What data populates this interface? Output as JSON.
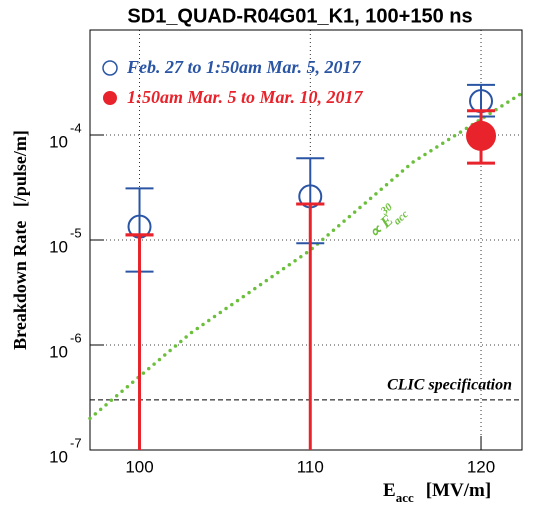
{
  "chart_data": {
    "type": "scatter",
    "title": "SD1_QUAD-R04G01_K1, 100+150 ns",
    "y_label": "Breakdown Rate   [/pulse/m]",
    "x_label": {
      "main": "E",
      "sub": "acc",
      "unit": "[MV/m]"
    },
    "log_y": true,
    "grid": true,
    "legend": "upper left",
    "xlim": [
      97.1,
      122.4
    ],
    "ylim": [
      1e-07,
      0.001
    ],
    "xticks": [
      100,
      110,
      120
    ],
    "yticks": [
      {
        "value": 1e-07,
        "label": "10",
        "exponent": "-7"
      },
      {
        "value": 1e-06,
        "label": "10",
        "exponent": "-6"
      },
      {
        "value": 1e-05,
        "label": "10",
        "exponent": "-5"
      },
      {
        "value": 0.0001,
        "label": "10",
        "exponent": "-4"
      }
    ],
    "series": [
      {
        "name": "Feb. 27 to 1:50am Mar. 5, 2017",
        "color": "#2a55a5",
        "marker": "open",
        "x": [
          100,
          110,
          120
        ],
        "values": [
          1.34e-05,
          2.6e-05,
          0.00021
        ],
        "upper": [
          3.1e-05,
          6e-05,
          0.0003
        ],
        "lower": [
          5e-06,
          9.3e-06,
          0.00015
        ]
      },
      {
        "name": "1:50am Mar. 5 to Mar. 10, 2017",
        "color": "#e8232b",
        "marker": "filled",
        "x": [
          100,
          110,
          120
        ],
        "values": [
          1.12e-05,
          2.2e-05,
          9.8e-05
        ],
        "upper": [
          1.12e-05,
          2.2e-05,
          0.00017
        ],
        "lower": [
          0,
          0,
          5.4e-05
        ]
      }
    ],
    "fit": {
      "color": "#6cbf3c",
      "label": {
        "main": "∝ E",
        "sub": "acc",
        "sup": "30"
      },
      "x": [
        97.1,
        103,
        110,
        116,
        122.4
      ],
      "values": [
        2e-07,
        1.3e-06,
        8e-06,
        5.5e-05,
        0.00025
      ]
    },
    "reference": {
      "label": "CLIC specification",
      "value": 3e-07
    }
  }
}
